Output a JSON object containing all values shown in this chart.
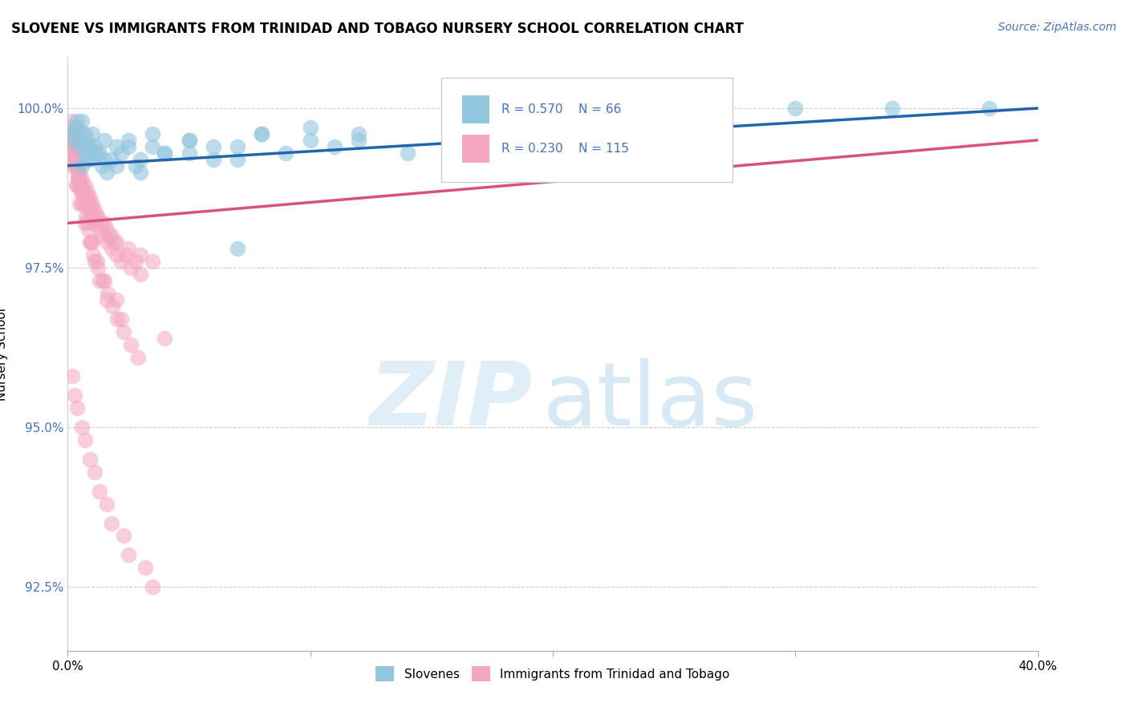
{
  "title": "SLOVENE VS IMMIGRANTS FROM TRINIDAD AND TOBAGO NURSERY SCHOOL CORRELATION CHART",
  "source": "Source: ZipAtlas.com",
  "ylabel": "Nursery School",
  "xmin": 0.0,
  "xmax": 40.0,
  "ymin": 91.5,
  "ymax": 100.8,
  "yticks": [
    92.5,
    95.0,
    97.5,
    100.0
  ],
  "ytick_labels": [
    "92.5%",
    "95.0%",
    "97.5%",
    "100.0%"
  ],
  "xticks": [
    0,
    10,
    20,
    30,
    40
  ],
  "xtick_labels": [
    "0.0%",
    "",
    "",
    "",
    "40.0%"
  ],
  "legend1_r": "R = 0.570",
  "legend1_n": "N = 66",
  "legend2_r": "R = 0.230",
  "legend2_n": "N = 115",
  "legend_label1": "Slovenes",
  "legend_label2": "Immigrants from Trinidad and Tobago",
  "color_blue": "#92c5de",
  "color_pink": "#f4a6c0",
  "trendline_blue": "#2166ac",
  "trendline_pink": "#d6537a",
  "blue_x": [
    0.2,
    0.3,
    0.4,
    0.5,
    0.6,
    0.7,
    0.8,
    0.9,
    1.0,
    1.1,
    1.2,
    1.4,
    1.6,
    1.8,
    2.0,
    2.2,
    2.5,
    2.8,
    3.0,
    3.5,
    4.0,
    5.0,
    6.0,
    7.0,
    8.0,
    9.0,
    10.0,
    11.0,
    12.0,
    14.0,
    16.0,
    18.0,
    20.0,
    22.0,
    24.0,
    0.3,
    0.5,
    0.7,
    0.9,
    1.3,
    1.5,
    2.0,
    3.0,
    4.0,
    5.0,
    6.0,
    7.0,
    8.0,
    10.0,
    12.0,
    0.4,
    0.6,
    0.8,
    1.0,
    1.5,
    2.5,
    3.5,
    5.0,
    7.0,
    30.0,
    34.0,
    38.0,
    26.0,
    18.0,
    0.6,
    0.8
  ],
  "blue_y": [
    99.5,
    99.6,
    99.7,
    99.4,
    99.8,
    99.3,
    99.5,
    99.2,
    99.6,
    99.4,
    99.3,
    99.1,
    99.0,
    99.2,
    99.4,
    99.3,
    99.5,
    99.1,
    99.2,
    99.4,
    99.3,
    99.5,
    99.2,
    99.4,
    99.6,
    99.3,
    99.5,
    99.4,
    99.6,
    99.3,
    99.5,
    99.7,
    99.6,
    99.4,
    99.8,
    99.7,
    99.5,
    99.6,
    99.4,
    99.3,
    99.2,
    99.1,
    99.0,
    99.3,
    99.5,
    99.4,
    99.2,
    99.6,
    99.7,
    99.5,
    99.8,
    99.6,
    99.4,
    99.3,
    99.5,
    99.4,
    99.6,
    99.3,
    97.8,
    100.0,
    100.0,
    100.0,
    99.9,
    99.8,
    99.1,
    99.2
  ],
  "pink_x": [
    0.05,
    0.08,
    0.1,
    0.12,
    0.15,
    0.18,
    0.2,
    0.22,
    0.25,
    0.28,
    0.3,
    0.32,
    0.35,
    0.38,
    0.4,
    0.42,
    0.45,
    0.48,
    0.5,
    0.55,
    0.6,
    0.65,
    0.7,
    0.75,
    0.8,
    0.85,
    0.9,
    0.95,
    1.0,
    1.1,
    1.2,
    1.3,
    1.4,
    1.5,
    1.6,
    1.7,
    1.8,
    1.9,
    2.0,
    2.2,
    2.4,
    2.6,
    2.8,
    3.0,
    0.1,
    0.2,
    0.3,
    0.4,
    0.5,
    0.6,
    0.7,
    0.8,
    0.9,
    1.0,
    1.1,
    1.2,
    1.4,
    1.6,
    1.8,
    2.0,
    2.5,
    3.0,
    3.5,
    0.15,
    0.25,
    0.35,
    0.45,
    0.55,
    0.65,
    0.75,
    0.85,
    0.95,
    1.05,
    1.25,
    1.45,
    1.65,
    1.85,
    2.05,
    2.3,
    2.6,
    2.9,
    0.2,
    0.4,
    0.6,
    0.8,
    1.0,
    1.2,
    1.5,
    2.0,
    0.1,
    0.15,
    0.25,
    0.35,
    0.5,
    0.7,
    0.9,
    1.1,
    1.3,
    1.6,
    2.2,
    4.0,
    0.3,
    0.6,
    0.9,
    1.3,
    1.8,
    2.5,
    3.5,
    0.2,
    0.4,
    0.7,
    1.1,
    1.6,
    2.3,
    3.2
  ],
  "pink_y": [
    99.7,
    99.6,
    99.5,
    99.8,
    99.4,
    99.3,
    99.6,
    99.2,
    99.5,
    99.1,
    99.3,
    99.4,
    99.2,
    99.0,
    99.1,
    98.9,
    99.0,
    98.8,
    98.9,
    98.7,
    98.8,
    98.6,
    98.7,
    98.5,
    98.6,
    98.4,
    98.5,
    98.3,
    98.4,
    98.2,
    98.3,
    98.1,
    98.0,
    98.2,
    97.9,
    98.0,
    97.8,
    97.9,
    97.7,
    97.6,
    97.7,
    97.5,
    97.6,
    97.4,
    99.4,
    99.3,
    99.2,
    99.1,
    99.0,
    98.9,
    98.8,
    98.7,
    98.6,
    98.5,
    98.4,
    98.3,
    98.2,
    98.1,
    98.0,
    97.9,
    97.8,
    97.7,
    97.6,
    99.5,
    99.3,
    99.1,
    98.9,
    98.7,
    98.5,
    98.3,
    98.1,
    97.9,
    97.7,
    97.5,
    97.3,
    97.1,
    96.9,
    96.7,
    96.5,
    96.3,
    96.1,
    99.2,
    98.8,
    98.5,
    98.2,
    97.9,
    97.6,
    97.3,
    97.0,
    99.6,
    99.4,
    99.1,
    98.8,
    98.5,
    98.2,
    97.9,
    97.6,
    97.3,
    97.0,
    96.7,
    96.4,
    95.5,
    95.0,
    94.5,
    94.0,
    93.5,
    93.0,
    92.5,
    95.8,
    95.3,
    94.8,
    94.3,
    93.8,
    93.3,
    92.8
  ]
}
